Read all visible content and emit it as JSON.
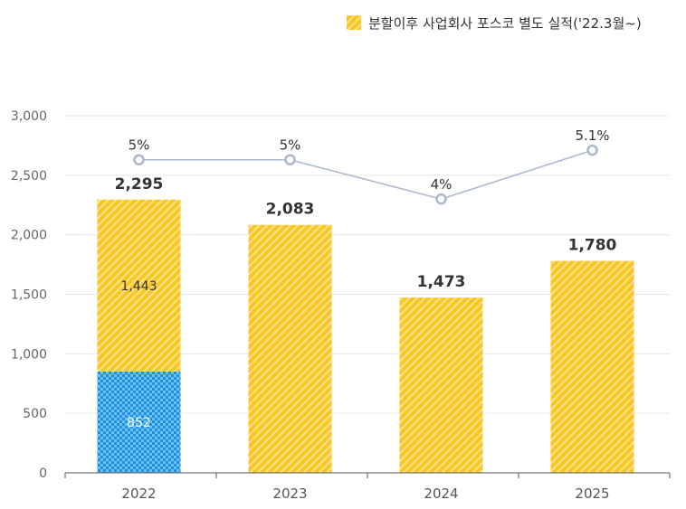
{
  "chart_data": {
    "type": "bar",
    "categories": [
      "2022",
      "2023",
      "2024",
      "2025"
    ],
    "ylim": [
      0,
      3000
    ],
    "yticks": [
      0,
      500,
      1000,
      1500,
      2000,
      2500,
      3000
    ],
    "ytick_labels": [
      "0",
      "500",
      "1,000",
      "1,500",
      "2,000",
      "2,500",
      "3,000"
    ],
    "grid": true,
    "legend_position": "top-right",
    "legend": {
      "label": "분할이후 사업회사 포스코 별도 실적('22.3월~)"
    },
    "colors": {
      "yellow": "#F9C623",
      "yellow_stripe": "#FDE38A",
      "blue": "#1E8FE0",
      "blue_check": "#6EC1F5",
      "line": "#A9B8CF",
      "axis": "#555555",
      "grid": "#E6E6E6"
    },
    "stacks": [
      {
        "category": "2022",
        "segments": [
          {
            "value": 852,
            "label": "852",
            "pattern": "blue"
          },
          {
            "value": 1443,
            "label": "1,443",
            "pattern": "yellow"
          }
        ],
        "total": 2295,
        "total_label": "2,295"
      },
      {
        "category": "2023",
        "segments": [
          {
            "value": 2083,
            "label": "",
            "pattern": "yellow"
          }
        ],
        "total": 2083,
        "total_label": "2,083"
      },
      {
        "category": "2024",
        "segments": [
          {
            "value": 1473,
            "label": "",
            "pattern": "yellow"
          }
        ],
        "total": 1473,
        "total_label": "1,473"
      },
      {
        "category": "2025",
        "segments": [
          {
            "value": 1780,
            "label": "",
            "pattern": "yellow"
          }
        ],
        "total": 1780,
        "total_label": "1,780"
      }
    ],
    "line_series": {
      "values": [
        5,
        5,
        4,
        5.1
      ],
      "labels": [
        "5%",
        "5%",
        "4%",
        "5.1%"
      ],
      "plot_at": [
        2630,
        2630,
        2300,
        2710
      ]
    }
  }
}
